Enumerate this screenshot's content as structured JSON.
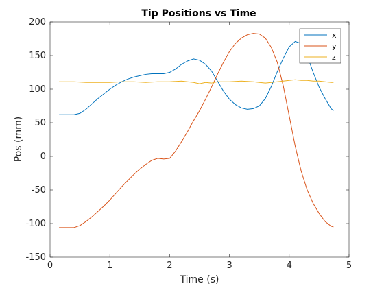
{
  "chart_data": {
    "type": "line",
    "title": "Tip Positions vs Time",
    "xlabel": "Time (s)",
    "ylabel": "Pos (mm)",
    "xlim": [
      0,
      5
    ],
    "ylim": [
      -150,
      200
    ],
    "xticks": [
      "0",
      "1",
      "2",
      "3",
      "4",
      "5"
    ],
    "yticks": [
      "-150",
      "-100",
      "-50",
      "0",
      "50",
      "100",
      "150",
      "200"
    ],
    "grid": false,
    "legend_position": "top-right",
    "series": [
      {
        "name": "x",
        "color": "#0072BD",
        "points": [
          [
            0.15,
            62
          ],
          [
            0.4,
            62
          ],
          [
            0.5,
            64
          ],
          [
            0.6,
            70
          ],
          [
            0.7,
            78
          ],
          [
            0.8,
            86
          ],
          [
            0.9,
            93
          ],
          [
            1.0,
            100
          ],
          [
            1.1,
            106
          ],
          [
            1.2,
            111
          ],
          [
            1.3,
            115
          ],
          [
            1.4,
            118
          ],
          [
            1.5,
            120
          ],
          [
            1.6,
            122
          ],
          [
            1.7,
            123
          ],
          [
            1.8,
            123
          ],
          [
            1.9,
            123
          ],
          [
            2.0,
            125
          ],
          [
            2.1,
            130
          ],
          [
            2.2,
            137
          ],
          [
            2.3,
            142
          ],
          [
            2.4,
            145
          ],
          [
            2.5,
            143
          ],
          [
            2.6,
            137
          ],
          [
            2.7,
            127
          ],
          [
            2.8,
            112
          ],
          [
            2.9,
            97
          ],
          [
            3.0,
            85
          ],
          [
            3.1,
            77
          ],
          [
            3.2,
            72
          ],
          [
            3.3,
            70
          ],
          [
            3.4,
            71
          ],
          [
            3.5,
            75
          ],
          [
            3.6,
            86
          ],
          [
            3.7,
            104
          ],
          [
            3.8,
            126
          ],
          [
            3.9,
            146
          ],
          [
            4.0,
            163
          ],
          [
            4.1,
            171
          ],
          [
            4.2,
            168
          ],
          [
            4.3,
            150
          ],
          [
            4.4,
            125
          ],
          [
            4.5,
            103
          ],
          [
            4.6,
            86
          ],
          [
            4.7,
            71
          ],
          [
            4.74,
            68
          ]
        ]
      },
      {
        "name": "y",
        "color": "#D95319",
        "points": [
          [
            0.15,
            -106
          ],
          [
            0.4,
            -106
          ],
          [
            0.5,
            -103
          ],
          [
            0.6,
            -97
          ],
          [
            0.7,
            -90
          ],
          [
            0.8,
            -82
          ],
          [
            0.9,
            -74
          ],
          [
            1.0,
            -65
          ],
          [
            1.1,
            -55
          ],
          [
            1.2,
            -45
          ],
          [
            1.3,
            -36
          ],
          [
            1.4,
            -27
          ],
          [
            1.5,
            -19
          ],
          [
            1.6,
            -12
          ],
          [
            1.7,
            -6
          ],
          [
            1.8,
            -3
          ],
          [
            1.9,
            -4
          ],
          [
            2.0,
            -3
          ],
          [
            2.1,
            8
          ],
          [
            2.2,
            22
          ],
          [
            2.3,
            37
          ],
          [
            2.4,
            53
          ],
          [
            2.5,
            68
          ],
          [
            2.6,
            85
          ],
          [
            2.7,
            103
          ],
          [
            2.8,
            122
          ],
          [
            2.9,
            140
          ],
          [
            3.0,
            156
          ],
          [
            3.1,
            168
          ],
          [
            3.2,
            176
          ],
          [
            3.3,
            181
          ],
          [
            3.4,
            183
          ],
          [
            3.5,
            182
          ],
          [
            3.6,
            176
          ],
          [
            3.7,
            162
          ],
          [
            3.8,
            140
          ],
          [
            3.9,
            105
          ],
          [
            4.0,
            60
          ],
          [
            4.1,
            15
          ],
          [
            4.2,
            -22
          ],
          [
            4.3,
            -50
          ],
          [
            4.4,
            -70
          ],
          [
            4.5,
            -85
          ],
          [
            4.6,
            -97
          ],
          [
            4.7,
            -104
          ],
          [
            4.74,
            -105
          ]
        ]
      },
      {
        "name": "z",
        "color": "#EDB120",
        "points": [
          [
            0.15,
            111
          ],
          [
            0.4,
            111
          ],
          [
            0.6,
            110
          ],
          [
            0.8,
            110
          ],
          [
            1.0,
            110
          ],
          [
            1.2,
            111
          ],
          [
            1.4,
            111
          ],
          [
            1.6,
            110
          ],
          [
            1.8,
            111
          ],
          [
            2.0,
            111
          ],
          [
            2.2,
            112
          ],
          [
            2.4,
            110
          ],
          [
            2.5,
            108
          ],
          [
            2.6,
            110
          ],
          [
            2.7,
            109
          ],
          [
            2.8,
            111
          ],
          [
            3.0,
            111
          ],
          [
            3.2,
            112
          ],
          [
            3.4,
            111
          ],
          [
            3.5,
            110
          ],
          [
            3.6,
            109
          ],
          [
            3.7,
            110
          ],
          [
            3.8,
            111
          ],
          [
            3.9,
            112
          ],
          [
            4.0,
            113
          ],
          [
            4.1,
            114
          ],
          [
            4.2,
            113
          ],
          [
            4.3,
            113
          ],
          [
            4.4,
            112
          ],
          [
            4.5,
            112
          ],
          [
            4.6,
            111
          ],
          [
            4.7,
            110
          ],
          [
            4.74,
            110
          ]
        ]
      }
    ]
  }
}
